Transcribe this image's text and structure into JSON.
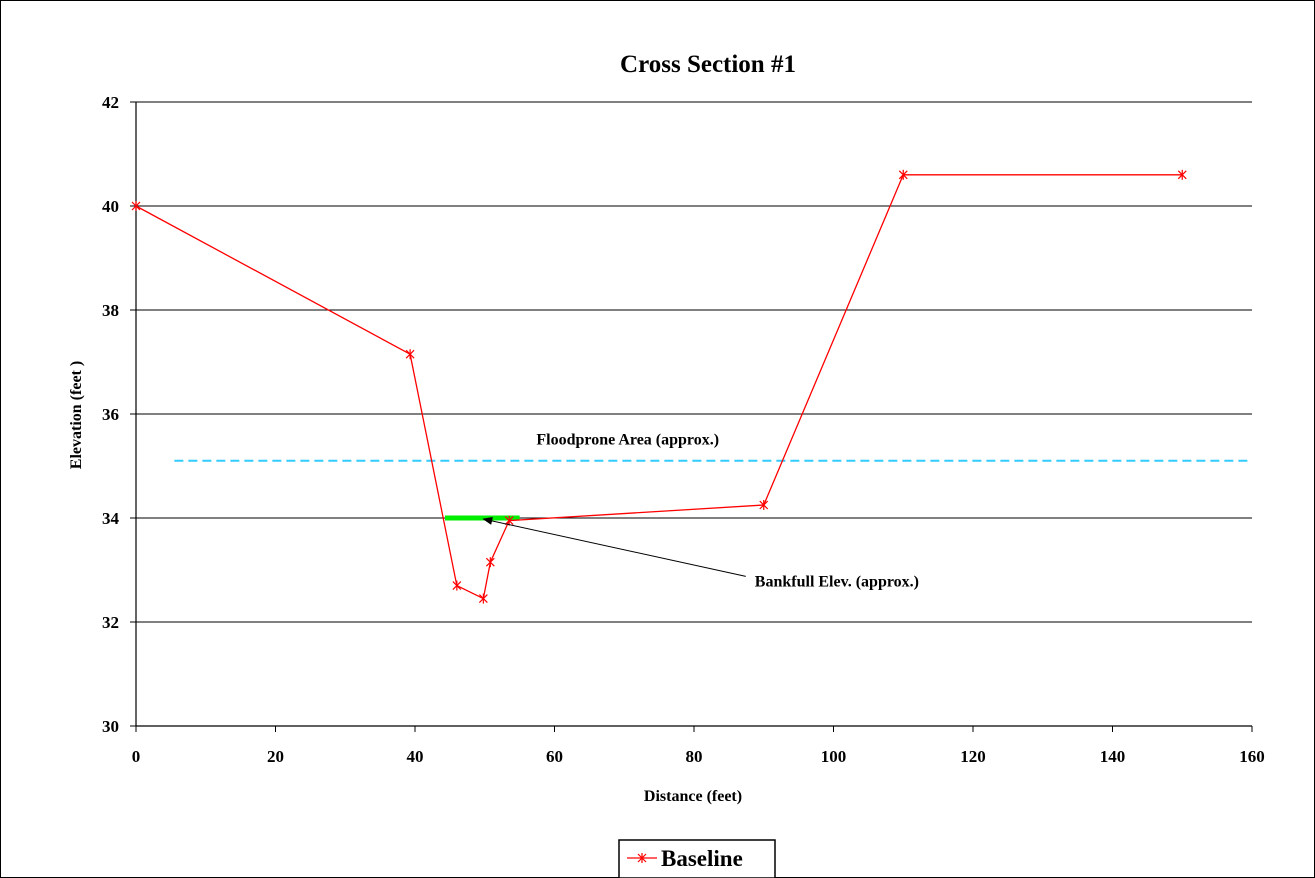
{
  "chart_data": {
    "type": "line",
    "title": "Cross Section #1",
    "xlabel": "Distance (feet)",
    "ylabel": "Elevation (feet )",
    "xlim": [
      0,
      160
    ],
    "ylim": [
      30,
      42
    ],
    "x_ticks": [
      0,
      20,
      40,
      60,
      80,
      100,
      120,
      140,
      160
    ],
    "y_ticks": [
      30,
      32,
      34,
      36,
      38,
      40,
      42
    ],
    "grid": "horizontal",
    "legend_position": "bottom-center",
    "series": [
      {
        "name": "Baseline",
        "color": "#ff0000",
        "marker": "asterisk",
        "x": [
          0,
          39.3,
          46,
          49.8,
          50.8,
          53.5,
          90,
          110,
          150
        ],
        "y": [
          40.0,
          37.15,
          32.7,
          32.45,
          33.15,
          33.95,
          34.25,
          40.6,
          40.6
        ]
      }
    ],
    "reference_lines": [
      {
        "label": "Floodprone Area (approx.)",
        "y": 35.1,
        "x_start": 5.5,
        "x_end": 160,
        "color": "#33ccff",
        "style": "dashed"
      },
      {
        "label": "Bankfull Elev. (approx.)",
        "y": 34.0,
        "x_start": 44.3,
        "x_end": 55,
        "color": "#00ee00",
        "style": "solid-thick"
      }
    ],
    "annotations": [
      {
        "text": "Bankfull Elev. (approx.)",
        "arrow_to": [
          49.5,
          34.0
        ],
        "text_at": [
          88,
          32.8
        ]
      },
      {
        "text": "Floodprone Area (approx.)",
        "text_at": [
          70.5,
          35.3
        ]
      }
    ]
  }
}
